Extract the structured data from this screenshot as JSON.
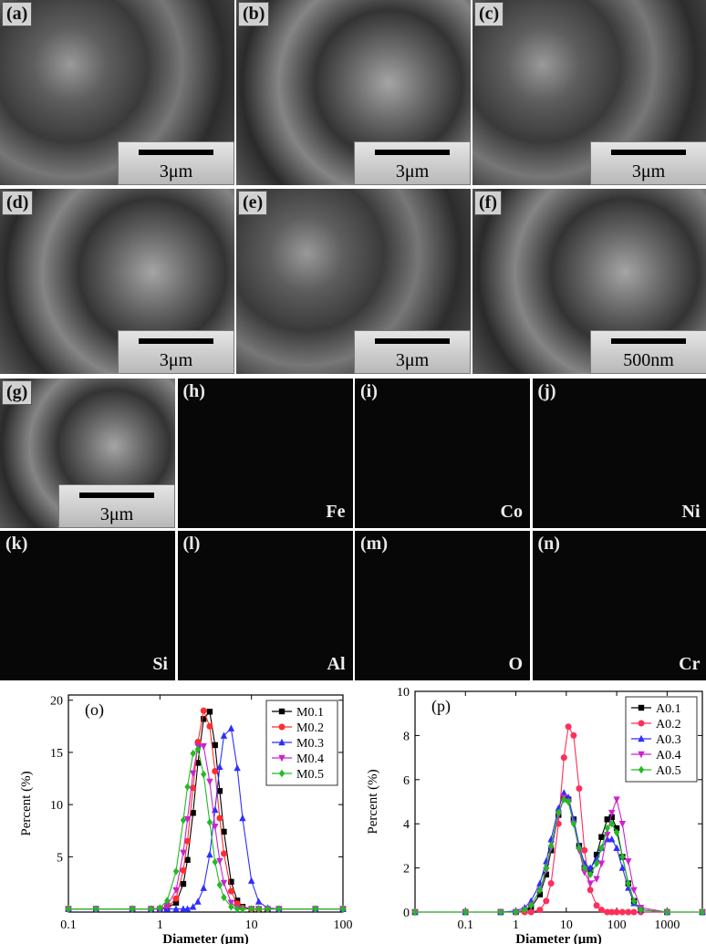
{
  "sem_panels": [
    {
      "label": "(a)",
      "scale_bar": "3μm"
    },
    {
      "label": "(b)",
      "scale_bar": "3μm"
    },
    {
      "label": "(c)",
      "scale_bar": "3μm"
    },
    {
      "label": "(d)",
      "scale_bar": "3μm"
    },
    {
      "label": "(e)",
      "scale_bar": "3μm"
    },
    {
      "label": "(f)",
      "scale_bar": "500nm"
    }
  ],
  "map_panels": [
    {
      "label": "(g)",
      "scale_bar": "3μm"
    },
    {
      "label": "(h)",
      "element": "Fe"
    },
    {
      "label": "(i)",
      "element": "Co"
    },
    {
      "label": "(j)",
      "element": "Ni"
    },
    {
      "label": "(k)",
      "element": "Si"
    },
    {
      "label": "(l)",
      "element": "Al"
    },
    {
      "label": "(m)",
      "element": "O"
    },
    {
      "label": "(n)",
      "element": "Cr"
    }
  ],
  "chart_data": [
    {
      "type": "line",
      "panel_label": "(o)",
      "x_label": "Diameter (μm)",
      "y_label": "Percent (%)",
      "log_x": true,
      "xlim": [
        0.1,
        100
      ],
      "xticks": [
        0.1,
        1,
        10,
        100
      ],
      "ylim": [
        -0.3,
        20.5
      ],
      "yticks": [
        5,
        10,
        15,
        20
      ],
      "legend": "upper right",
      "x": [
        0.1,
        0.2,
        0.5,
        0.8,
        1,
        1.2,
        1.5,
        1.8,
        2,
        2.3,
        2.6,
        3,
        3.5,
        4,
        4.5,
        5,
        6,
        7,
        8,
        10,
        12,
        15,
        20,
        50,
        100
      ],
      "series": [
        {
          "name": "M0.1",
          "color": "#000000",
          "marker": "square",
          "values": [
            0,
            0,
            0,
            0,
            0,
            0.1,
            0.6,
            2.4,
            4.7,
            9.2,
            14.0,
            18.2,
            18.9,
            15.7,
            11.3,
            7.4,
            2.6,
            0.8,
            0.2,
            0,
            0,
            0,
            0,
            0,
            0
          ]
        },
        {
          "name": "M0.2",
          "color": "#ff2e2e",
          "marker": "circle",
          "values": [
            0,
            0,
            0,
            0,
            0,
            0.1,
            1.0,
            3.7,
            6.5,
            11.6,
            16.0,
            19.0,
            17.5,
            13.2,
            8.7,
            5.3,
            1.7,
            0.5,
            0.1,
            0,
            0,
            0,
            0,
            0,
            0
          ]
        },
        {
          "name": "M0.3",
          "color": "#2e2eff",
          "marker": "triangle-up",
          "values": [
            0,
            0,
            0,
            0,
            0,
            0,
            0,
            0,
            0,
            0.2,
            0.7,
            2.0,
            5.2,
            9.5,
            13.6,
            16.6,
            17.3,
            13.5,
            8.7,
            2.7,
            0.7,
            0.1,
            0,
            0,
            0
          ]
        },
        {
          "name": "M0.4",
          "color": "#cc22cc",
          "marker": "triangle-down",
          "values": [
            0,
            0,
            0,
            0,
            0,
            0.3,
            1.8,
            5.4,
            8.6,
            13.0,
            15.6,
            15.6,
            12.2,
            7.9,
            4.6,
            2.5,
            0.6,
            0.1,
            0,
            0,
            0,
            0,
            0,
            0,
            0
          ]
        },
        {
          "name": "M0.5",
          "color": "#22bb22",
          "marker": "diamond",
          "values": [
            0,
            0,
            0,
            0,
            0.1,
            0.8,
            3.6,
            8.5,
            11.7,
            14.9,
            15.3,
            12.9,
            8.3,
            4.5,
            2.3,
            1.1,
            0.2,
            0,
            0,
            0,
            0,
            0,
            0,
            0,
            0
          ]
        }
      ]
    },
    {
      "type": "line",
      "panel_label": "(p)",
      "x_label": "Diameter (μm)",
      "y_label": "Percent (%)",
      "log_x": true,
      "xlim": [
        0.01,
        5000
      ],
      "xticks": [
        0.1,
        1,
        10,
        100,
        1000
      ],
      "ylim": [
        0,
        10
      ],
      "yticks": [
        0,
        2,
        4,
        6,
        8,
        10
      ],
      "legend": "upper right",
      "x": [
        0.01,
        0.1,
        0.5,
        1,
        1.5,
        2,
        3,
        4,
        5,
        7,
        9,
        11,
        14,
        18,
        23,
        30,
        40,
        50,
        65,
        80,
        100,
        130,
        170,
        220,
        300,
        1000,
        5000
      ],
      "series": [
        {
          "name": "A0.1",
          "color": "#000000",
          "marker": "square",
          "values": [
            0,
            0,
            0,
            0,
            0.05,
            0.2,
            0.8,
            1.7,
            2.8,
            4.4,
            5.2,
            5.1,
            4.2,
            3.0,
            2.0,
            1.9,
            2.6,
            3.4,
            4.2,
            4.3,
            3.8,
            2.5,
            1.3,
            0.5,
            0.1,
            0,
            0
          ]
        },
        {
          "name": "A0.2",
          "color": "#ff2e5a",
          "marker": "circle",
          "values": [
            0,
            0,
            0,
            0,
            0,
            0,
            0.1,
            0.5,
            1.3,
            4.0,
            7.0,
            8.4,
            8.0,
            5.6,
            2.8,
            1.0,
            0.3,
            0.1,
            0,
            0,
            0,
            0,
            0,
            0,
            0,
            0,
            0
          ]
        },
        {
          "name": "A0.3",
          "color": "#2e2eff",
          "marker": "triangle-up",
          "values": [
            0,
            0,
            0,
            0.05,
            0.2,
            0.5,
            1.3,
            2.3,
            3.3,
            4.7,
            5.4,
            5.2,
            4.2,
            3.0,
            2.2,
            2.0,
            2.4,
            2.9,
            3.3,
            3.3,
            2.9,
            2.0,
            1.1,
            0.4,
            0.1,
            0,
            0
          ]
        },
        {
          "name": "A0.4",
          "color": "#cc22cc",
          "marker": "triangle-down",
          "values": [
            0,
            0,
            0,
            0,
            0.1,
            0.3,
            1.0,
            1.9,
            2.9,
            4.4,
            5.2,
            5.0,
            4.0,
            2.8,
            1.8,
            1.3,
            1.5,
            2.2,
            3.5,
            4.5,
            5.1,
            4.0,
            2.3,
            1.0,
            0.2,
            0,
            0
          ]
        },
        {
          "name": "A0.5",
          "color": "#22bb22",
          "marker": "diamond",
          "values": [
            0,
            0,
            0,
            0,
            0.1,
            0.3,
            1.0,
            2.0,
            3.0,
            4.5,
            5.1,
            5.0,
            4.0,
            2.9,
            2.0,
            1.7,
            2.2,
            2.9,
            3.8,
            4.0,
            3.6,
            2.5,
            1.3,
            0.5,
            0.1,
            0,
            0
          ]
        }
      ]
    }
  ]
}
